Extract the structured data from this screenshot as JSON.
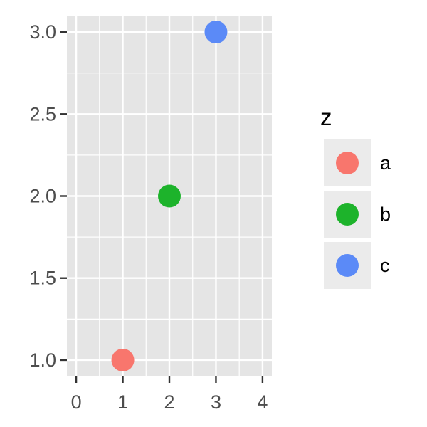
{
  "chart_data": {
    "type": "scatter",
    "title": "",
    "xlabel": "",
    "ylabel": "",
    "xlim": [
      -0.2,
      4.2
    ],
    "ylim": [
      0.9,
      3.1
    ],
    "x_ticks": [
      0,
      1,
      2,
      3,
      4
    ],
    "x_tick_labels": [
      "0",
      "1",
      "2",
      "3",
      "4"
    ],
    "y_ticks": [
      1.0,
      1.5,
      2.0,
      2.5,
      3.0
    ],
    "y_tick_labels": [
      "1.0",
      "1.5",
      "2.0",
      "2.5",
      "3.0"
    ],
    "grid": true,
    "panel_background": "#e5e5e5",
    "grid_color": "#ffffff",
    "legend": {
      "title": "z",
      "placement": "right",
      "entries": [
        {
          "label": "a",
          "color": "#F8766D"
        },
        {
          "label": "b",
          "color": "#1DB32B"
        },
        {
          "label": "c",
          "color": "#5B8AF7"
        }
      ]
    },
    "points": [
      {
        "x": 1,
        "y": 1.0,
        "z": "a",
        "color": "#F8766D"
      },
      {
        "x": 2,
        "y": 2.0,
        "z": "b",
        "color": "#1DB32B"
      },
      {
        "x": 3,
        "y": 3.0,
        "z": "c",
        "color": "#5B8AF7"
      }
    ]
  }
}
